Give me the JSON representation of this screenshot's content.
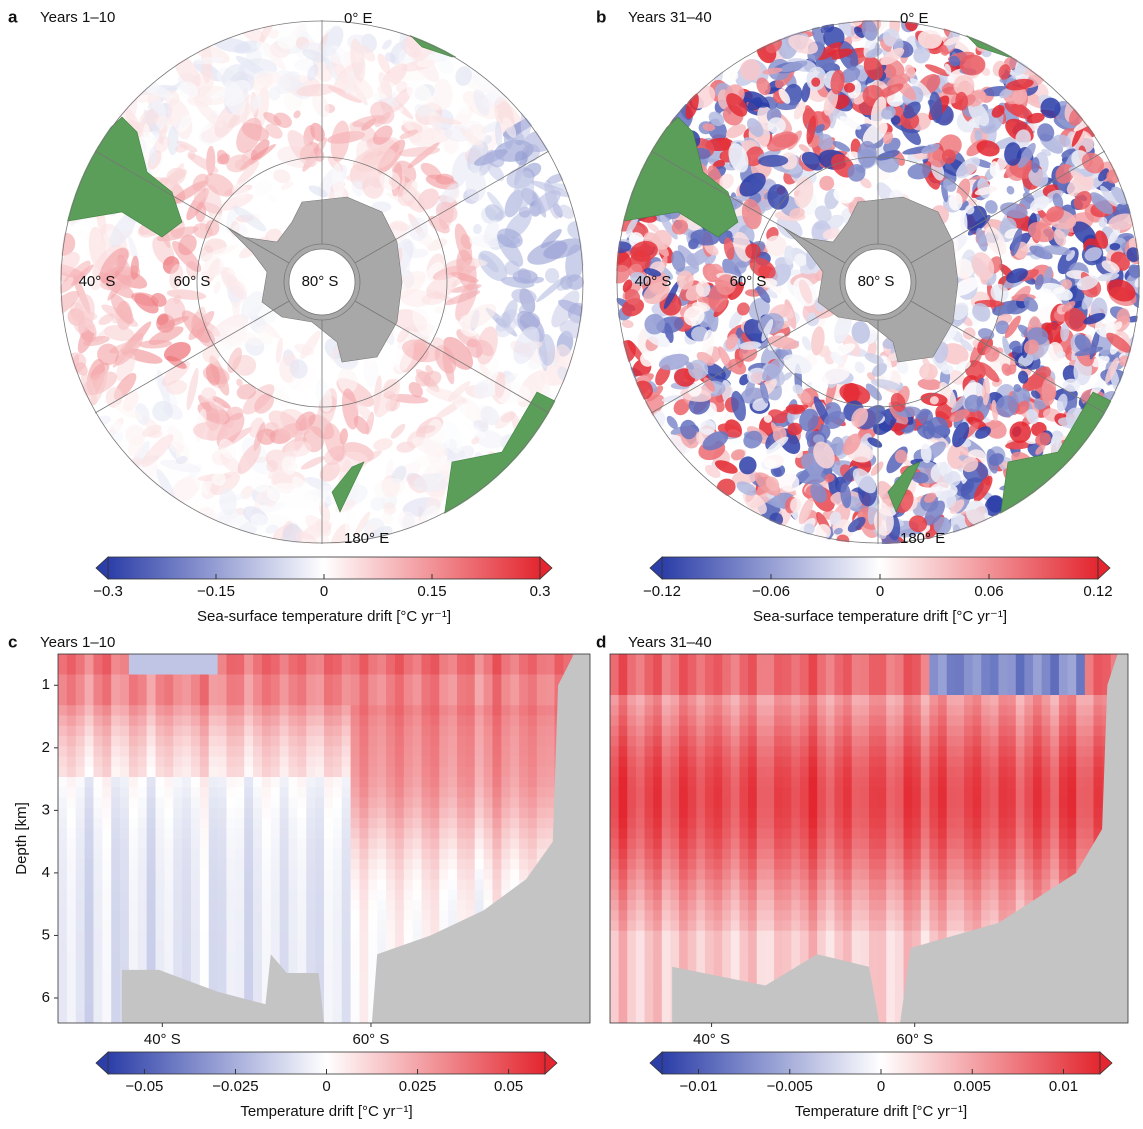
{
  "chart_data": [
    {
      "type": "polar-map",
      "panel": "a",
      "title": "Years 1–10",
      "labels": [
        "0° E",
        "180° E",
        "40° S",
        "60° S",
        "80° S"
      ],
      "colorbar_label": "Sea-surface temperature drift [°C yr⁻¹]",
      "clim": [
        -0.3,
        0.3
      ],
      "cticks": [
        {
          "value": -0.3,
          "label": "−0.3"
        },
        {
          "value": -0.15,
          "label": "−0.15"
        },
        0,
        0.15,
        0.3
      ]
    },
    {
      "type": "polar-map",
      "panel": "b",
      "title": "Years 31–40",
      "labels": [
        "0° E",
        "180° E",
        "40° S",
        "60° S",
        "80° S"
      ],
      "colorbar_label": "Sea-surface temperature drift [°C yr⁻¹]",
      "clim": [
        -0.12,
        0.12
      ],
      "cticks": [
        {
          "value": -0.12,
          "label": "−0.12"
        },
        {
          "value": -0.06,
          "label": "−0.06"
        },
        0,
        0.06,
        0.12
      ]
    },
    {
      "type": "depth-section",
      "panel": "c",
      "title": "Years 1–10",
      "ylabel": "Depth [km]",
      "xlim": [
        30,
        81
      ],
      "xticks": [
        {
          "value": 40,
          "label": "40° S"
        },
        {
          "value": 60,
          "label": "60° S"
        }
      ],
      "ylim": [
        0.5,
        6.4
      ],
      "yticks": [
        1,
        2,
        3,
        4,
        5,
        6
      ],
      "colorbar_label": "Temperature drift [°C yr⁻¹]",
      "clim": [
        -0.06,
        0.06
      ],
      "cticks": [
        {
          "value": -0.05,
          "label": "−0.05"
        },
        {
          "value": -0.025,
          "label": "−0.025"
        },
        0,
        0.025,
        0.05
      ]
    },
    {
      "type": "depth-section",
      "panel": "d",
      "title": "Years 31–40",
      "xlim": [
        30,
        81
      ],
      "xticks": [
        {
          "value": 40,
          "label": "40° S"
        },
        {
          "value": 60,
          "label": "60° S"
        }
      ],
      "ylim": [
        0.5,
        6.4
      ],
      "colorbar_label": "Temperature drift [°C yr⁻¹]",
      "clim": [
        -0.012,
        0.012
      ],
      "cticks": [
        {
          "value": -0.01,
          "label": "−0.01"
        },
        {
          "value": -0.005,
          "label": "−0.005"
        },
        0,
        0.005,
        0.01
      ]
    }
  ]
}
